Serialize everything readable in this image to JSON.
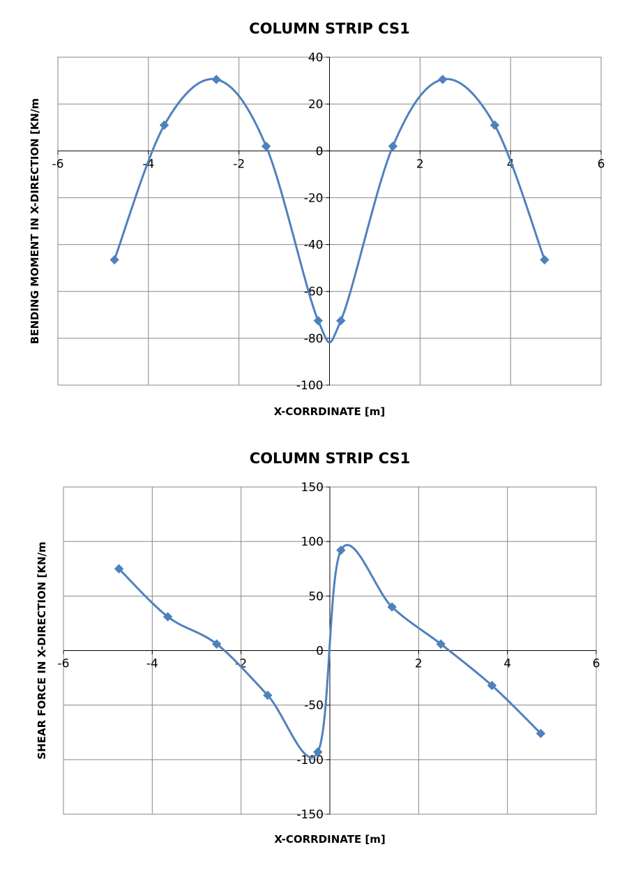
{
  "chart_data": [
    {
      "type": "line",
      "title": "COLUMN STRIP CS1",
      "xlabel": "X-CORRDINATE [m]",
      "ylabel": "BENDING MOMENT IN X-DIRECTION [KN/m",
      "xlim": [
        -6,
        6
      ],
      "ylim": [
        -100,
        40
      ],
      "xticks": [
        -6,
        -4,
        -2,
        0,
        2,
        4,
        6
      ],
      "yticks": [
        -100,
        -80,
        -60,
        -40,
        -20,
        0,
        20,
        40
      ],
      "grid": true,
      "legend": "none",
      "smooth": true,
      "color": "#4F81BD",
      "series": [
        {
          "name": "",
          "x": [
            -4.75,
            -3.65,
            -2.5,
            -1.4,
            -0.25,
            0.25,
            1.4,
            2.5,
            3.65,
            4.75
          ],
          "y": [
            -46.5,
            11,
            30.5,
            2,
            -72.5,
            -72.5,
            2,
            30.5,
            11,
            -46.5
          ]
        }
      ]
    },
    {
      "type": "line",
      "title": "COLUMN STRIP CS1",
      "xlabel": "X-CORRDINATE [m]",
      "ylabel": "SHEAR FORCE IN X-DIRECTION [KN/m",
      "xlim": [
        -6,
        6
      ],
      "ylim": [
        -150,
        150
      ],
      "xticks": [
        -6,
        -4,
        -2,
        0,
        2,
        4,
        6
      ],
      "yticks": [
        -150,
        -100,
        -50,
        0,
        50,
        100,
        150
      ],
      "grid": true,
      "legend": "none",
      "smooth": true,
      "color": "#4F81BD",
      "series": [
        {
          "name": "",
          "x": [
            -4.75,
            -3.65,
            -2.55,
            -1.4,
            -0.27,
            0.25,
            1.4,
            2.5,
            3.65,
            4.75
          ],
          "y": [
            75,
            31,
            6,
            -41,
            -93,
            92,
            40,
            6,
            -32,
            -76
          ]
        }
      ]
    }
  ]
}
